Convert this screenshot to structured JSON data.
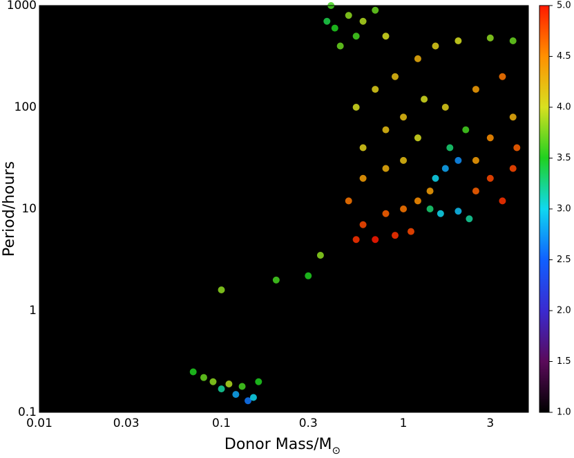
{
  "chart_data": {
    "type": "scatter",
    "xlabel": "Donor Mass/M",
    "xlabel_sub": "⊙",
    "ylabel": "Period/hours",
    "xlog": true,
    "ylog": true,
    "background": "#000000",
    "xlim": [
      0.01,
      4.86
    ],
    "ylim": [
      0.1,
      1000
    ],
    "xticks": [
      0.01,
      0.03,
      0.1,
      0.3,
      1,
      3
    ],
    "yticks": [
      0.1,
      1,
      10,
      100,
      1000
    ],
    "clim": [
      1,
      5
    ],
    "cticks": [
      {
        "value": 1,
        "label": "1.0"
      },
      1.5,
      {
        "value": 2,
        "label": "2.0"
      },
      2.5,
      {
        "value": 3,
        "label": "3.0"
      },
      3.5,
      {
        "value": 4,
        "label": "4.0"
      },
      4.5,
      {
        "value": 5,
        "label": "5.0"
      }
    ],
    "colormap": [
      "#000000",
      "#5a0a5a",
      "#3a2ad0",
      "#1060ff",
      "#10d8f0",
      "#20d020",
      "#d8e020",
      "#ff9000",
      "#ff1a00"
    ],
    "x": [
      0.07,
      0.09,
      0.1,
      0.12,
      0.14,
      0.15,
      0.13,
      0.11,
      0.08,
      0.16,
      0.4,
      0.42,
      0.45,
      0.5,
      0.55,
      0.6,
      0.7,
      0.8,
      0.38,
      0.55,
      0.7,
      0.9,
      1.2,
      1.5,
      2,
      3,
      4,
      0.6,
      0.8,
      1.0,
      1.3,
      1.7,
      2.5,
      3.5,
      0.6,
      0.8,
      1.0,
      1.2,
      0.55,
      0.7,
      0.9,
      1.1,
      0.6,
      0.8,
      1.0,
      1.2,
      1.4,
      0.5,
      1.5,
      1.7,
      2.0,
      1.8,
      2.2,
      1.4,
      1.6,
      2.0,
      2.3,
      2.5,
      3,
      3.5,
      4,
      4.2,
      3,
      4,
      2.5,
      0.3,
      0.2,
      0.35,
      0.1
    ],
    "values": [
      0.25,
      0.2,
      0.17,
      0.15,
      0.13,
      0.14,
      0.18,
      0.19,
      0.22,
      0.2,
      1000,
      600,
      400,
      800,
      500,
      700,
      900,
      500,
      700,
      100,
      150,
      200,
      300,
      400,
      450,
      480,
      450,
      40,
      60,
      80,
      120,
      100,
      150,
      200,
      20,
      25,
      30,
      50,
      5,
      5,
      5.5,
      6,
      7,
      9,
      10,
      12,
      15,
      12,
      20,
      25,
      30,
      40,
      60,
      10,
      9,
      9.5,
      8,
      15,
      20,
      12,
      25,
      40,
      50,
      80,
      30,
      2.2,
      2,
      3.5,
      1.6
    ],
    "color_values": [
      3.5,
      3.8,
      3.2,
      2.8,
      2.6,
      3.0,
      3.6,
      3.9,
      3.7,
      3.5,
      3.6,
      3.5,
      3.7,
      3.8,
      3.6,
      3.9,
      3.7,
      4.0,
      3.4,
      4.0,
      4.1,
      4.2,
      4.3,
      4.1,
      4.0,
      3.8,
      3.7,
      4.1,
      4.2,
      4.2,
      4.0,
      4.1,
      4.4,
      4.6,
      4.4,
      4.3,
      4.2,
      4.0,
      4.9,
      5.0,
      4.9,
      4.8,
      4.8,
      4.7,
      4.6,
      4.5,
      4.4,
      4.6,
      3.0,
      2.8,
      2.7,
      3.3,
      3.6,
      3.3,
      3.0,
      2.9,
      3.2,
      4.7,
      4.8,
      4.9,
      4.8,
      4.7,
      4.5,
      4.3,
      4.4,
      3.5,
      3.6,
      3.8,
      3.8
    ]
  }
}
